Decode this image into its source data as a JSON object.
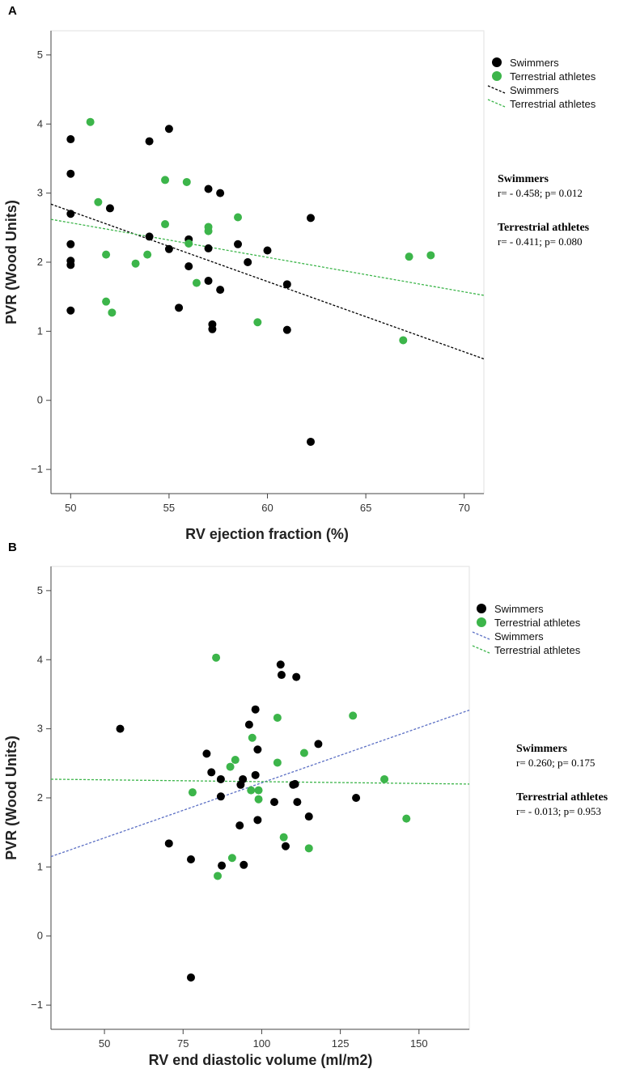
{
  "colors": {
    "swimmers": "#000000",
    "terrestrial": "#3cb54a",
    "blue_line": "#5b6fc4"
  },
  "chart_data": [
    {
      "panel": "A",
      "type": "scatter",
      "xlabel": "RV ejection fraction (%)",
      "ylabel": "PVR (Wood Units)",
      "xlim": [
        49,
        71
      ],
      "ylim": [
        -1.35,
        5.35
      ],
      "xticks": [
        50,
        55,
        60,
        65,
        70
      ],
      "yticks": [
        -1,
        0,
        1,
        2,
        3,
        4,
        5
      ],
      "series": [
        {
          "name": "Swimmers",
          "color": "#000000",
          "points": [
            [
              50,
              3.78
            ],
            [
              50,
              3.28
            ],
            [
              50,
              2.7
            ],
            [
              50,
              2.26
            ],
            [
              50,
              2.02
            ],
            [
              50,
              1.96
            ],
            [
              50,
              1.3
            ],
            [
              52,
              2.78
            ],
            [
              54,
              3.75
            ],
            [
              54,
              2.37
            ],
            [
              55,
              3.93
            ],
            [
              55,
              2.19
            ],
            [
              55.5,
              1.34
            ],
            [
              56,
              2.33
            ],
            [
              56,
              1.94
            ],
            [
              57,
              3.06
            ],
            [
              57,
              2.2
            ],
            [
              57,
              1.73
            ],
            [
              57.2,
              1.1
            ],
            [
              57.2,
              1.03
            ],
            [
              57.6,
              3.0
            ],
            [
              57.6,
              1.6
            ],
            [
              58.5,
              2.26
            ],
            [
              59,
              2.0
            ],
            [
              60,
              2.17
            ],
            [
              61,
              1.68
            ],
            [
              61,
              1.02
            ],
            [
              62.2,
              2.64
            ],
            [
              62.2,
              -0.6
            ]
          ]
        },
        {
          "name": "Terrestrial athletes",
          "color": "#3cb54a",
          "points": [
            [
              51,
              4.03
            ],
            [
              51.4,
              2.87
            ],
            [
              51.8,
              2.11
            ],
            [
              51.8,
              1.43
            ],
            [
              52.1,
              1.27
            ],
            [
              53.3,
              1.98
            ],
            [
              53.9,
              2.11
            ],
            [
              54.8,
              3.19
            ],
            [
              54.8,
              2.55
            ],
            [
              55.9,
              3.16
            ],
            [
              56,
              2.27
            ],
            [
              56.4,
              1.7
            ],
            [
              57,
              2.51
            ],
            [
              57,
              2.45
            ],
            [
              58.5,
              2.65
            ],
            [
              59.5,
              1.13
            ],
            [
              66.9,
              0.87
            ],
            [
              67.2,
              2.08
            ],
            [
              68.3,
              2.1
            ]
          ]
        }
      ],
      "fit_lines": [
        {
          "name": "Swimmers",
          "color": "#000000",
          "x": [
            49,
            71
          ],
          "y": [
            2.84,
            0.6
          ]
        },
        {
          "name": "Terrestrial athletes",
          "color": "#3cb54a",
          "x": [
            49,
            71
          ],
          "y": [
            2.62,
            1.52
          ]
        }
      ],
      "legend": [
        "Swimmers",
        "Terrestrial athletes",
        "Swimmers",
        "Terrestrial athletes"
      ],
      "stats": [
        {
          "group": "Swimmers",
          "text": "r= - 0.458; p= 0.012"
        },
        {
          "group": "Terrestrial athletes",
          "text": "r= - 0.411; p= 0.080"
        }
      ]
    },
    {
      "panel": "B",
      "type": "scatter",
      "xlabel": "RV end diastolic volume (ml/m2)",
      "ylabel": "PVR (Wood Units)",
      "xlim": [
        33,
        166
      ],
      "ylim": [
        -1.35,
        5.35
      ],
      "xticks": [
        50,
        75,
        100,
        125,
        150
      ],
      "yticks": [
        -1,
        0,
        1,
        2,
        3,
        4,
        5
      ],
      "series": [
        {
          "name": "Swimmers",
          "color": "#000000",
          "points": [
            [
              55,
              3.0
            ],
            [
              70.5,
              1.34
            ],
            [
              77.5,
              1.11
            ],
            [
              77.5,
              -0.6
            ],
            [
              82.5,
              2.64
            ],
            [
              84,
              2.37
            ],
            [
              87,
              2.27
            ],
            [
              87,
              2.02
            ],
            [
              87.3,
              1.02
            ],
            [
              93,
              1.6
            ],
            [
              93.3,
              2.19
            ],
            [
              94,
              2.27
            ],
            [
              94.3,
              1.03
            ],
            [
              96,
              3.06
            ],
            [
              98,
              3.28
            ],
            [
              98,
              2.33
            ],
            [
              98.7,
              2.7
            ],
            [
              98.7,
              1.68
            ],
            [
              104,
              1.94
            ],
            [
              106,
              3.93
            ],
            [
              106.3,
              3.78
            ],
            [
              107.6,
              1.3
            ],
            [
              110,
              2.19
            ],
            [
              110.6,
              2.2
            ],
            [
              111,
              3.75
            ],
            [
              111.3,
              1.94
            ],
            [
              115,
              1.73
            ],
            [
              118,
              2.78
            ],
            [
              130,
              2.0
            ]
          ]
        },
        {
          "name": "Terrestrial athletes",
          "color": "#3cb54a",
          "points": [
            [
              78,
              2.08
            ],
            [
              85.5,
              4.03
            ],
            [
              86,
              0.87
            ],
            [
              90,
              2.45
            ],
            [
              90.6,
              1.13
            ],
            [
              91.6,
              2.55
            ],
            [
              96.6,
              2.11
            ],
            [
              97,
              2.87
            ],
            [
              99,
              2.11
            ],
            [
              99,
              1.98
            ],
            [
              105,
              3.16
            ],
            [
              105,
              2.51
            ],
            [
              107,
              1.43
            ],
            [
              113.5,
              2.65
            ],
            [
              115,
              1.27
            ],
            [
              129,
              3.19
            ],
            [
              139,
              2.27
            ],
            [
              146,
              1.7
            ]
          ]
        }
      ],
      "fit_lines": [
        {
          "name": "Swimmers",
          "color": "#5b6fc4",
          "x": [
            33,
            166
          ],
          "y": [
            1.15,
            3.27
          ]
        },
        {
          "name": "Terrestrial athletes",
          "color": "#3cb54a",
          "x": [
            33,
            166
          ],
          "y": [
            2.27,
            2.2
          ]
        }
      ],
      "legend": [
        "Swimmers",
        "Terrestrial athletes",
        "Swimmers",
        "Terrestrial athletes"
      ],
      "stats": [
        {
          "group": "Swimmers",
          "text": "r= 0.260; p= 0.175"
        },
        {
          "group": "Terrestrial athletes",
          "text": "r= - 0.013; p= 0.953"
        }
      ]
    }
  ]
}
